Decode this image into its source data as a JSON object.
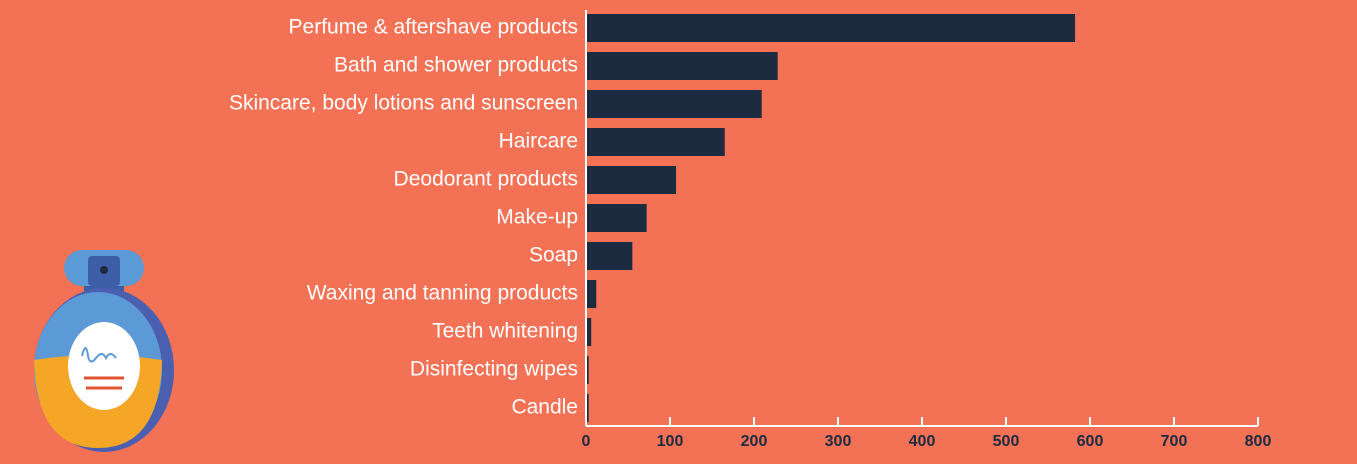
{
  "chart_data": {
    "type": "bar",
    "orientation": "horizontal",
    "categories": [
      "Perfume & aftershave products",
      "Bath and shower products",
      "Skincare, body lotions and sunscreen",
      "Haircare",
      "Deodorant products",
      "Make-up",
      "Soap",
      "Waxing and tanning products",
      "Teeth whitening",
      "Disinfecting wipes",
      "Candle"
    ],
    "values": [
      581,
      227,
      208,
      164,
      106,
      71,
      54,
      11,
      5,
      2,
      2
    ],
    "color": "#1c2b3f",
    "xlim": [
      0,
      800
    ],
    "xticks": [
      0,
      100,
      200,
      300,
      400,
      500,
      600,
      700,
      800
    ]
  }
}
